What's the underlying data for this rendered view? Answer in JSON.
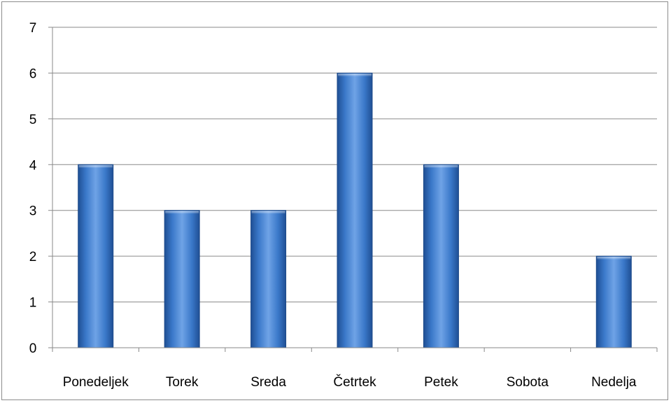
{
  "chart_data": {
    "type": "bar",
    "title": "",
    "xlabel": "",
    "ylabel": "",
    "categories": [
      "Ponedeljek",
      "Torek",
      "Sreda",
      "Četrtek",
      "Petek",
      "Sobota",
      "Nedelja"
    ],
    "values": [
      4,
      3,
      3,
      6,
      4,
      0,
      2
    ],
    "ylim": [
      0,
      7
    ],
    "yticks": [
      "0",
      "1",
      "2",
      "3",
      "4",
      "5",
      "6",
      "7"
    ],
    "grid": true,
    "legend": "none",
    "bar_color": "#3a78c9"
  }
}
